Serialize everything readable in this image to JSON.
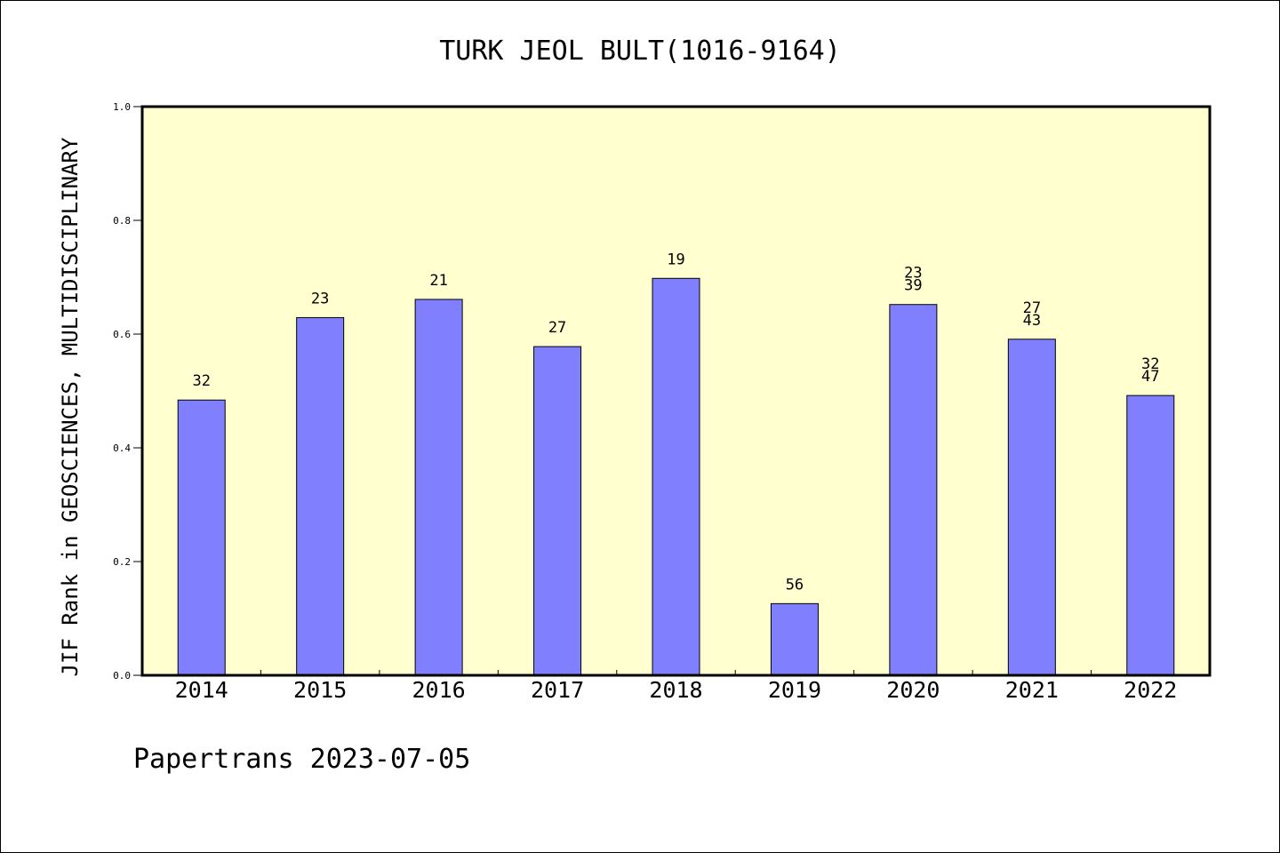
{
  "chart_data": {
    "type": "bar",
    "title": "TURK JEOL BULT(1016-9164)",
    "ylabel": "JIF Rank in GEOSCIENCES, MULTIDISCIPLINARY",
    "xlabel": "",
    "categories": [
      "2014",
      "2015",
      "2016",
      "2017",
      "2018",
      "2019",
      "2020",
      "2021",
      "2022"
    ],
    "values": [
      0.484,
      0.629,
      0.661,
      0.578,
      0.698,
      0.126,
      0.652,
      0.591,
      0.492
    ],
    "annotations": [
      [
        "32"
      ],
      [
        "23"
      ],
      [
        "21"
      ],
      [
        "27"
      ],
      [
        "19"
      ],
      [
        "56"
      ],
      [
        "23",
        "39"
      ],
      [
        "27",
        "43"
      ],
      [
        "32",
        "47"
      ]
    ],
    "ylim": [
      0,
      1.0
    ],
    "yticks": [
      "0.0",
      "0.2",
      "0.4",
      "0.6",
      "0.8",
      "1.0"
    ],
    "grid": false,
    "legend": "none",
    "colors": {
      "bar": "#8080ff",
      "plot_background": "#ffffd0",
      "axes": "#000000"
    }
  },
  "footer": {
    "credit": "Papertrans 2023-07-05"
  }
}
